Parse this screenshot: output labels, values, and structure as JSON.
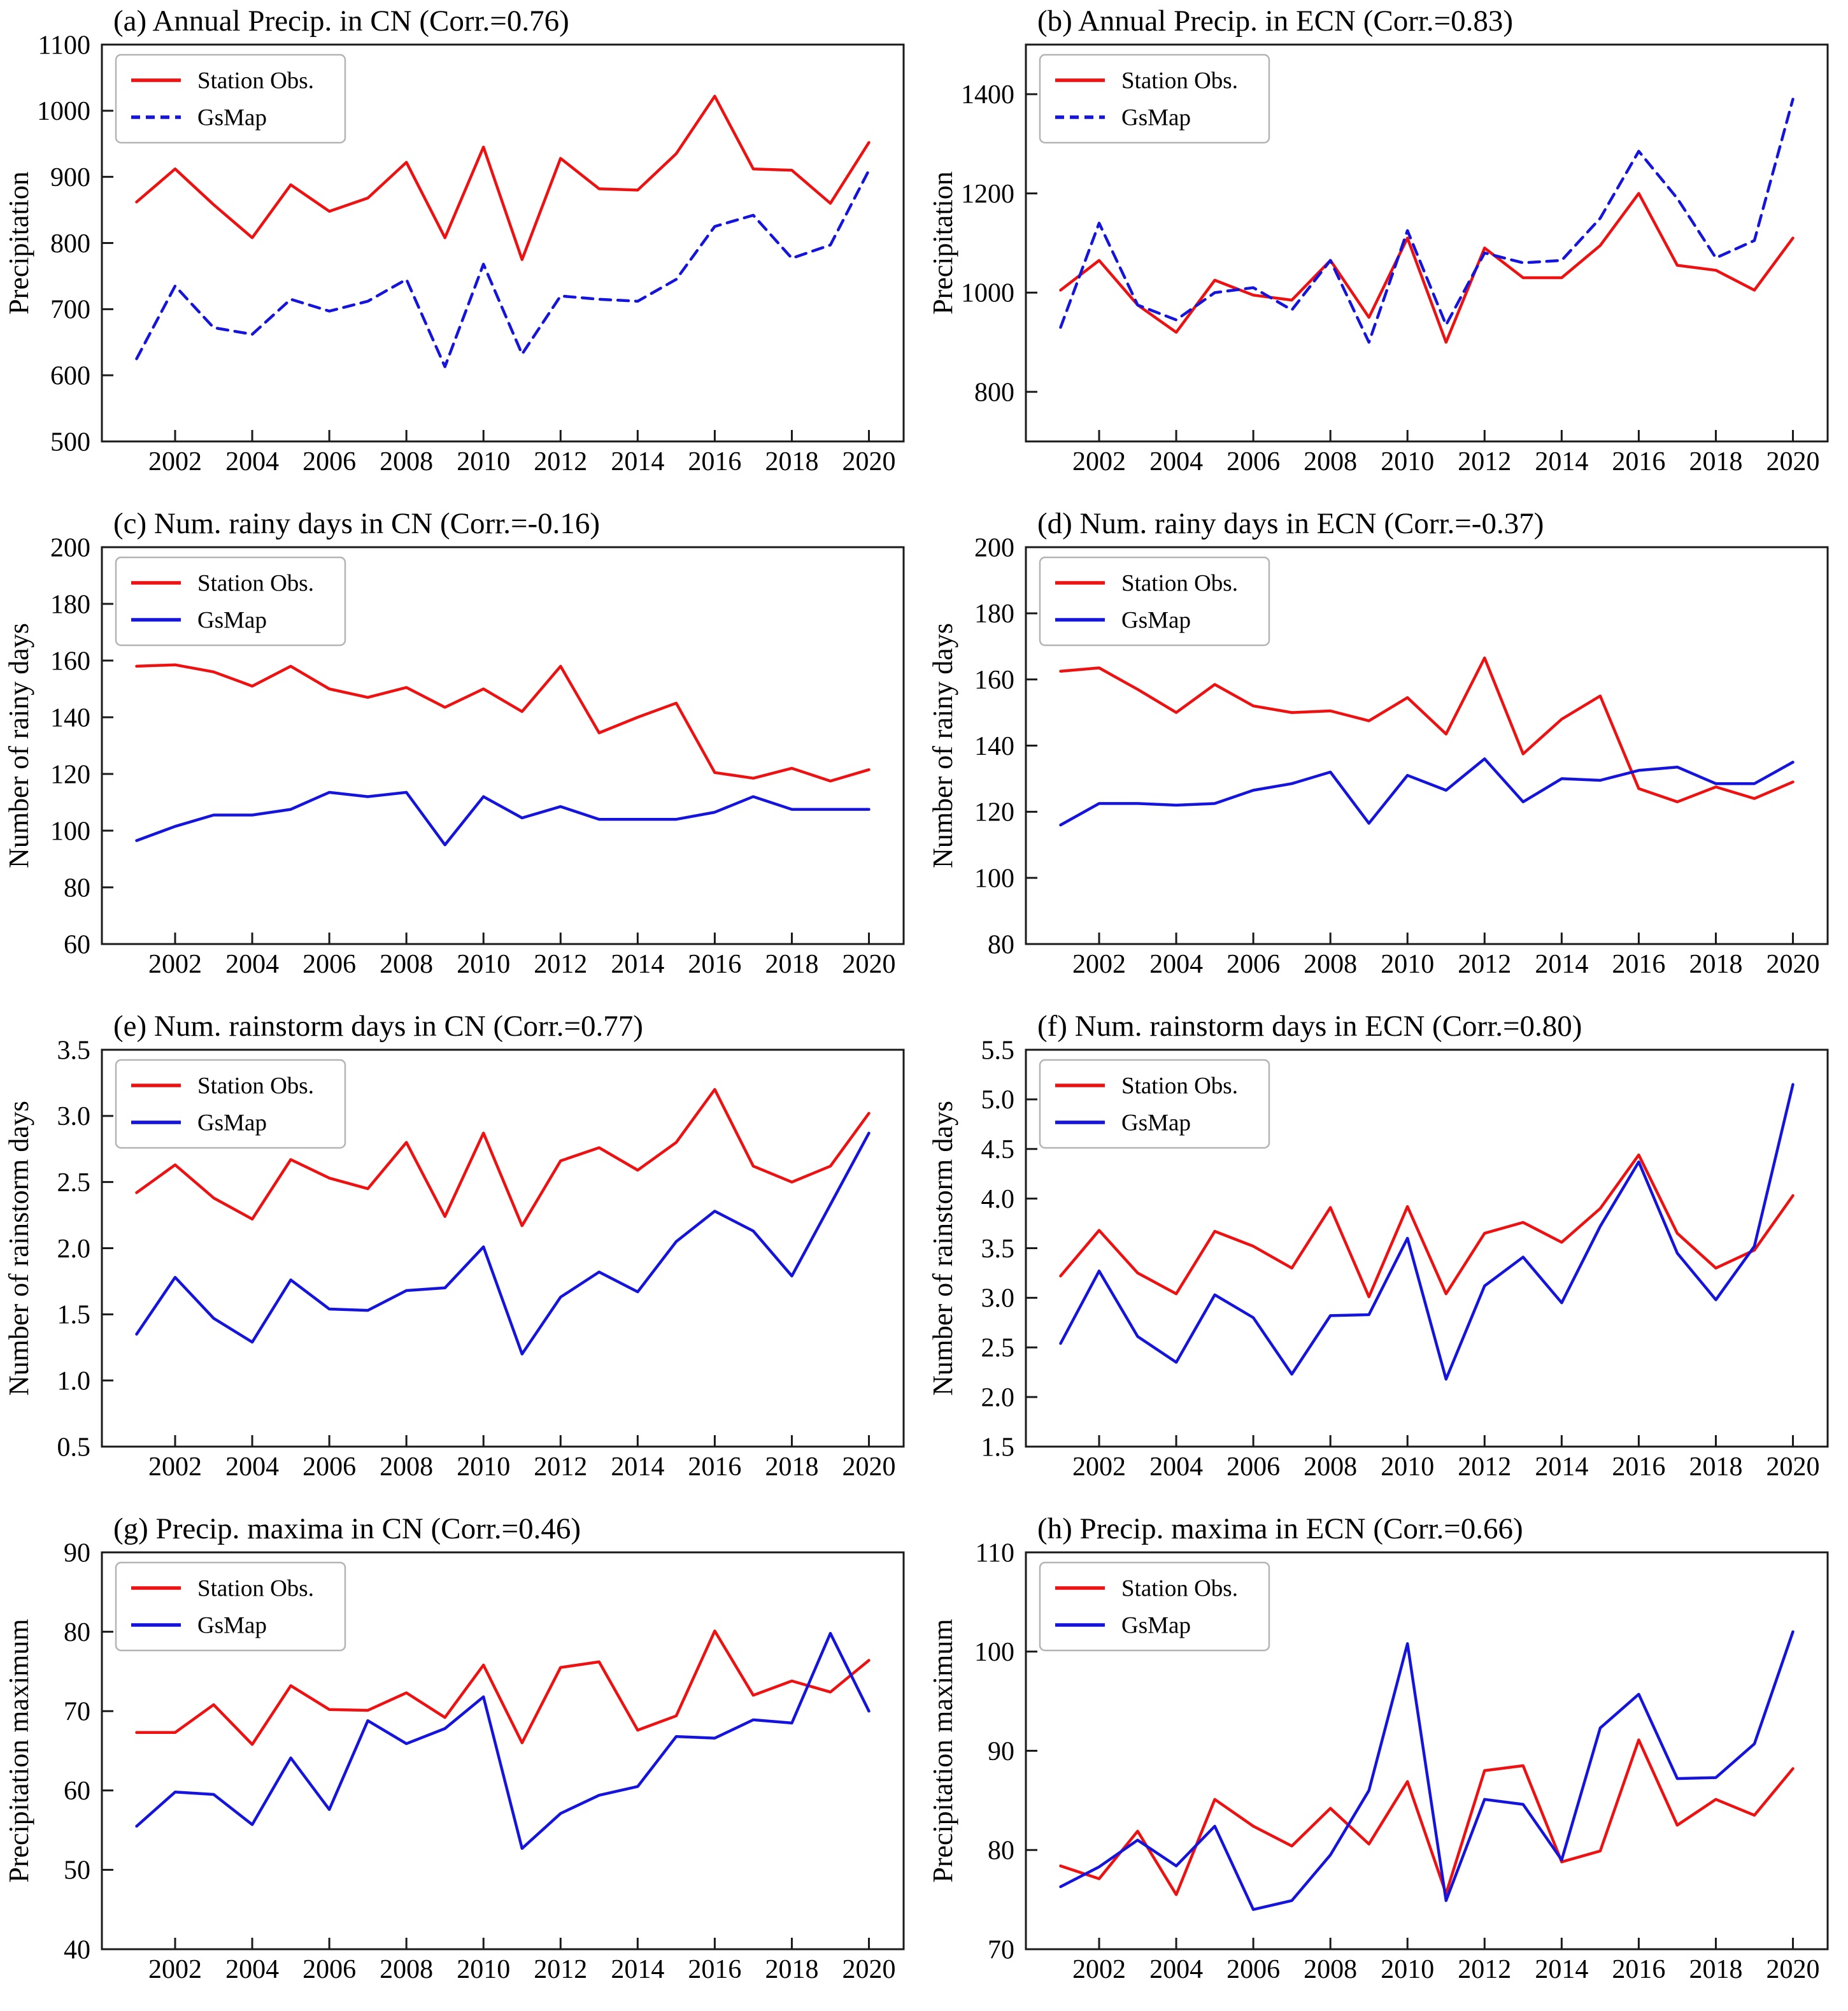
{
  "figure": {
    "background": "#ffffff",
    "frame_color": "#1a1a1a",
    "series_colors": {
      "station_obs": "#ee1111",
      "gsmap": "#1414dd"
    }
  },
  "x_axis": {
    "years": [
      2001,
      2002,
      2003,
      2004,
      2005,
      2006,
      2007,
      2008,
      2009,
      2010,
      2011,
      2012,
      2013,
      2014,
      2015,
      2016,
      2017,
      2018,
      2019,
      2020
    ],
    "ticks": [
      2002,
      2004,
      2006,
      2008,
      2010,
      2012,
      2014,
      2016,
      2018,
      2020
    ],
    "xlim": [
      2000.1,
      2020.9
    ]
  },
  "chart_data": [
    {
      "id": "a",
      "type": "line",
      "title": "(a) Annual Precip. in CN (Corr.=0.76)",
      "ylabel": "Precipitation",
      "ylim": [
        500,
        1100
      ],
      "ytick_step": 100,
      "ytick_decimals": 0,
      "legend_position": "upper-left",
      "series": [
        {
          "name": "Station Obs.",
          "color": "#ee1111",
          "dash": false,
          "values": [
            862,
            912,
            858,
            808,
            888,
            848,
            868,
            922,
            808,
            945,
            775,
            928,
            882,
            880,
            935,
            1022,
            912,
            910,
            860,
            952
          ]
        },
        {
          "name": "GsMap",
          "color": "#1414dd",
          "dash": true,
          "values": [
            625,
            735,
            672,
            662,
            715,
            697,
            712,
            745,
            613,
            768,
            632,
            720,
            715,
            712,
            745,
            825,
            842,
            777,
            797,
            910
          ]
        }
      ]
    },
    {
      "id": "b",
      "type": "line",
      "title": "(b) Annual Precip. in ECN (Corr.=0.83)",
      "ylabel": "Precipitation",
      "ylim": [
        700,
        1500
      ],
      "ytick_step": 200,
      "ytick_decimals": 0,
      "legend_position": "upper-left",
      "series": [
        {
          "name": "Station Obs.",
          "color": "#ee1111",
          "dash": false,
          "values": [
            1005,
            1065,
            975,
            920,
            1025,
            995,
            985,
            1065,
            950,
            1110,
            900,
            1090,
            1030,
            1030,
            1095,
            1200,
            1055,
            1045,
            1005,
            1110
          ]
        },
        {
          "name": "GsMap",
          "color": "#1414dd",
          "dash": true,
          "values": [
            930,
            1140,
            975,
            945,
            1000,
            1010,
            965,
            1065,
            900,
            1125,
            935,
            1080,
            1060,
            1065,
            1150,
            1285,
            1190,
            1070,
            1105,
            1390
          ]
        }
      ]
    },
    {
      "id": "c",
      "type": "line",
      "title": "(c) Num. rainy days in CN (Corr.=-0.16)",
      "ylabel": "Number of rainy days",
      "ylim": [
        60,
        200
      ],
      "ytick_step": 20,
      "ytick_decimals": 0,
      "legend_position": "upper-left",
      "series": [
        {
          "name": "Station Obs.",
          "color": "#ee1111",
          "dash": false,
          "values": [
            158,
            158.5,
            156,
            151,
            158,
            150,
            147,
            150.5,
            143.5,
            150,
            142,
            158,
            134.5,
            140,
            145,
            120.5,
            118.5,
            122,
            117.5,
            121.5
          ]
        },
        {
          "name": "GsMap",
          "color": "#1414dd",
          "dash": false,
          "values": [
            96.5,
            101.5,
            105.5,
            105.5,
            107.5,
            113.5,
            112,
            113.5,
            95,
            112,
            104.5,
            108.5,
            104,
            104,
            104,
            106.5,
            112,
            107.5,
            107.5,
            107.5
          ]
        }
      ]
    },
    {
      "id": "d",
      "type": "line",
      "title": "(d) Num. rainy days in ECN (Corr.=-0.37)",
      "ylabel": "Number of rainy days",
      "ylim": [
        80,
        200
      ],
      "ytick_step": 20,
      "ytick_decimals": 0,
      "legend_position": "upper-left",
      "series": [
        {
          "name": "Station Obs.",
          "color": "#ee1111",
          "dash": false,
          "values": [
            162.5,
            163.5,
            157,
            150,
            158.5,
            152,
            150,
            150.5,
            147.5,
            154.5,
            143.5,
            166.5,
            137.5,
            148,
            155,
            127,
            123,
            127.5,
            124,
            129
          ]
        },
        {
          "name": "GsMap",
          "color": "#1414dd",
          "dash": false,
          "values": [
            116,
            122.5,
            122.5,
            122,
            122.5,
            126.5,
            128.5,
            132,
            116.5,
            131,
            126.5,
            136,
            123,
            130,
            129.5,
            132.5,
            133.5,
            128.5,
            128.5,
            135
          ]
        }
      ]
    },
    {
      "id": "e",
      "type": "line",
      "title": "(e) Num. rainstorm days in CN (Corr.=0.77)",
      "ylabel": "Number of rainstorm days",
      "ylim": [
        0.5,
        3.5
      ],
      "ytick_step": 0.5,
      "ytick_decimals": 1,
      "legend_position": "upper-left",
      "series": [
        {
          "name": "Station Obs.",
          "color": "#ee1111",
          "dash": false,
          "values": [
            2.42,
            2.63,
            2.38,
            2.22,
            2.67,
            2.53,
            2.45,
            2.8,
            2.24,
            2.87,
            2.17,
            2.66,
            2.76,
            2.59,
            2.8,
            3.2,
            2.62,
            2.5,
            2.62,
            3.02
          ]
        },
        {
          "name": "GsMap",
          "color": "#1414dd",
          "dash": false,
          "values": [
            1.35,
            1.78,
            1.47,
            1.29,
            1.76,
            1.54,
            1.53,
            1.68,
            1.7,
            2.01,
            1.2,
            1.63,
            1.82,
            1.67,
            2.05,
            2.28,
            2.13,
            1.79,
            2.33,
            2.87
          ]
        }
      ]
    },
    {
      "id": "f",
      "type": "line",
      "title": "(f) Num. rainstorm days in ECN (Corr.=0.80)",
      "ylabel": "Number of rainstorm days",
      "ylim": [
        1.5,
        5.5
      ],
      "ytick_step": 0.5,
      "ytick_decimals": 1,
      "legend_position": "upper-left",
      "series": [
        {
          "name": "Station Obs.",
          "color": "#ee1111",
          "dash": false,
          "values": [
            3.22,
            3.68,
            3.25,
            3.04,
            3.67,
            3.52,
            3.3,
            3.91,
            3.01,
            3.92,
            3.04,
            3.65,
            3.76,
            3.56,
            3.9,
            4.44,
            3.65,
            3.3,
            3.48,
            4.03
          ]
        },
        {
          "name": "GsMap",
          "color": "#1414dd",
          "dash": false,
          "values": [
            2.54,
            3.27,
            2.61,
            2.35,
            3.03,
            2.8,
            2.23,
            2.82,
            2.83,
            3.6,
            2.18,
            3.12,
            3.41,
            2.95,
            3.72,
            4.37,
            3.45,
            2.98,
            3.52,
            5.15
          ]
        }
      ]
    },
    {
      "id": "g",
      "type": "line",
      "title": "(g) Precip. maxima in CN (Corr.=0.46)",
      "ylabel": "Precipitation maximum",
      "ylim": [
        40,
        90
      ],
      "ytick_step": 10,
      "ytick_decimals": 0,
      "legend_position": "upper-left",
      "series": [
        {
          "name": "Station Obs.",
          "color": "#ee1111",
          "dash": false,
          "values": [
            67.3,
            67.3,
            70.8,
            65.8,
            73.2,
            70.2,
            70.1,
            72.3,
            69.2,
            75.8,
            66.0,
            75.5,
            76.2,
            67.6,
            69.4,
            80.1,
            72.0,
            73.8,
            72.4,
            76.4
          ]
        },
        {
          "name": "GsMap",
          "color": "#1414dd",
          "dash": false,
          "values": [
            55.5,
            59.8,
            59.5,
            55.7,
            64.1,
            57.6,
            68.8,
            65.9,
            67.8,
            71.8,
            52.7,
            57.1,
            59.4,
            60.5,
            66.8,
            66.6,
            68.9,
            68.5,
            79.8,
            70.0
          ]
        }
      ]
    },
    {
      "id": "h",
      "type": "line",
      "title": "(h) Precip. maxima in ECN (Corr.=0.66)",
      "ylabel": "Precipitation maximum",
      "ylim": [
        70,
        110
      ],
      "ytick_step": 10,
      "ytick_decimals": 0,
      "legend_position": "upper-left",
      "series": [
        {
          "name": "Station Obs.",
          "color": "#ee1111",
          "dash": false,
          "values": [
            78.4,
            77.1,
            81.9,
            75.5,
            85.1,
            82.4,
            80.4,
            84.2,
            80.6,
            86.9,
            75.6,
            88.0,
            88.5,
            78.8,
            79.9,
            91.1,
            82.5,
            85.1,
            83.5,
            88.2
          ]
        },
        {
          "name": "GsMap",
          "color": "#1414dd",
          "dash": false,
          "values": [
            76.3,
            78.3,
            81.0,
            78.4,
            82.4,
            74.0,
            74.9,
            79.5,
            86.0,
            100.8,
            74.9,
            85.1,
            84.6,
            79.0,
            92.3,
            95.7,
            87.2,
            87.3,
            90.7,
            102.0
          ]
        }
      ]
    }
  ]
}
